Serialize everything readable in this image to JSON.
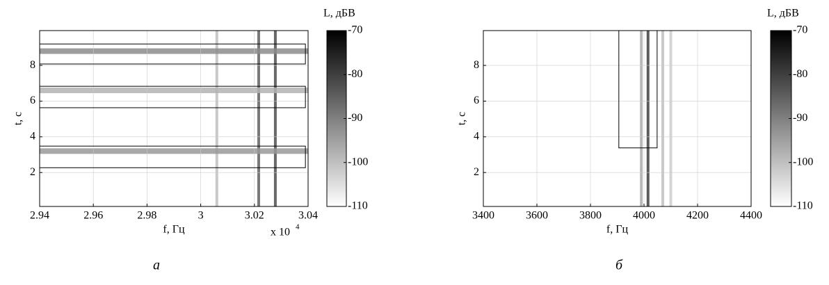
{
  "chart_data": [
    {
      "type": "spectrogram",
      "xlabel": "f, Гц",
      "ylabel": "t, c",
      "x_multiplier": "x 10",
      "x_multiplier_power": "4",
      "xlim": [
        29400,
        30400
      ],
      "xticks": [
        {
          "value": 29400,
          "label": "2.94"
        },
        {
          "value": 29600,
          "label": "2.96"
        },
        {
          "value": 29800,
          "label": "2.98"
        },
        {
          "value": 30000,
          "label": "3"
        },
        {
          "value": 30200,
          "label": "3.02"
        },
        {
          "value": 30400,
          "label": "3.04"
        }
      ],
      "ylim": [
        0.1,
        9.95
      ],
      "yticks": [
        2,
        4,
        6,
        8
      ],
      "grid": true,
      "colorbar_label": "L, дБВ",
      "clim": [
        -110,
        -70
      ],
      "cticks": [
        -70,
        -80,
        -90,
        -100,
        -110
      ],
      "colormap": [
        "#ffffff",
        "#000000"
      ],
      "features": [
        {
          "axis": "x",
          "value": 30216,
          "level": -85
        },
        {
          "axis": "x",
          "value": 30278,
          "level": -82
        },
        {
          "axis": "x",
          "value": 30060,
          "level": -100
        },
        {
          "axis": "y",
          "value": 8.8,
          "level": -92
        },
        {
          "axis": "y",
          "value": 6.6,
          "level": -98
        },
        {
          "axis": "y",
          "value": 3.2,
          "level": -94
        }
      ],
      "highlight_regions": [
        {
          "xlim": [
            29400,
            30390
          ],
          "ylim": [
            8.08,
            9.2
          ]
        },
        {
          "xlim": [
            29400,
            30390
          ],
          "ylim": [
            5.63,
            6.83
          ]
        },
        {
          "xlim": [
            29400,
            30390
          ],
          "ylim": [
            2.27,
            3.48
          ]
        }
      ],
      "panel_label": "а"
    },
    {
      "type": "spectrogram",
      "xlabel": "f, Гц",
      "ylabel": "t, c",
      "xlim": [
        3400,
        4400
      ],
      "xticks": [
        3400,
        3600,
        3800,
        4000,
        4200,
        4400
      ],
      "ylim": [
        0.1,
        9.95
      ],
      "yticks": [
        2,
        4,
        6,
        8
      ],
      "grid": true,
      "colorbar_label": "L, дБВ",
      "clim": [
        -110,
        -70
      ],
      "cticks": [
        -70,
        -80,
        -90,
        -100,
        -110
      ],
      "colormap": [
        "#ffffff",
        "#000000"
      ],
      "features": [
        {
          "axis": "x",
          "value": 4015,
          "level": -80
        },
        {
          "axis": "x",
          "value": 3990,
          "level": -97
        },
        {
          "axis": "x",
          "value": 4070,
          "level": -100
        },
        {
          "axis": "x",
          "value": 4100,
          "level": -102
        }
      ],
      "highlight_regions": [
        {
          "xlim": [
            3906,
            4049
          ],
          "ylim": [
            3.38,
            9.95
          ]
        }
      ],
      "panel_label": "б"
    }
  ]
}
